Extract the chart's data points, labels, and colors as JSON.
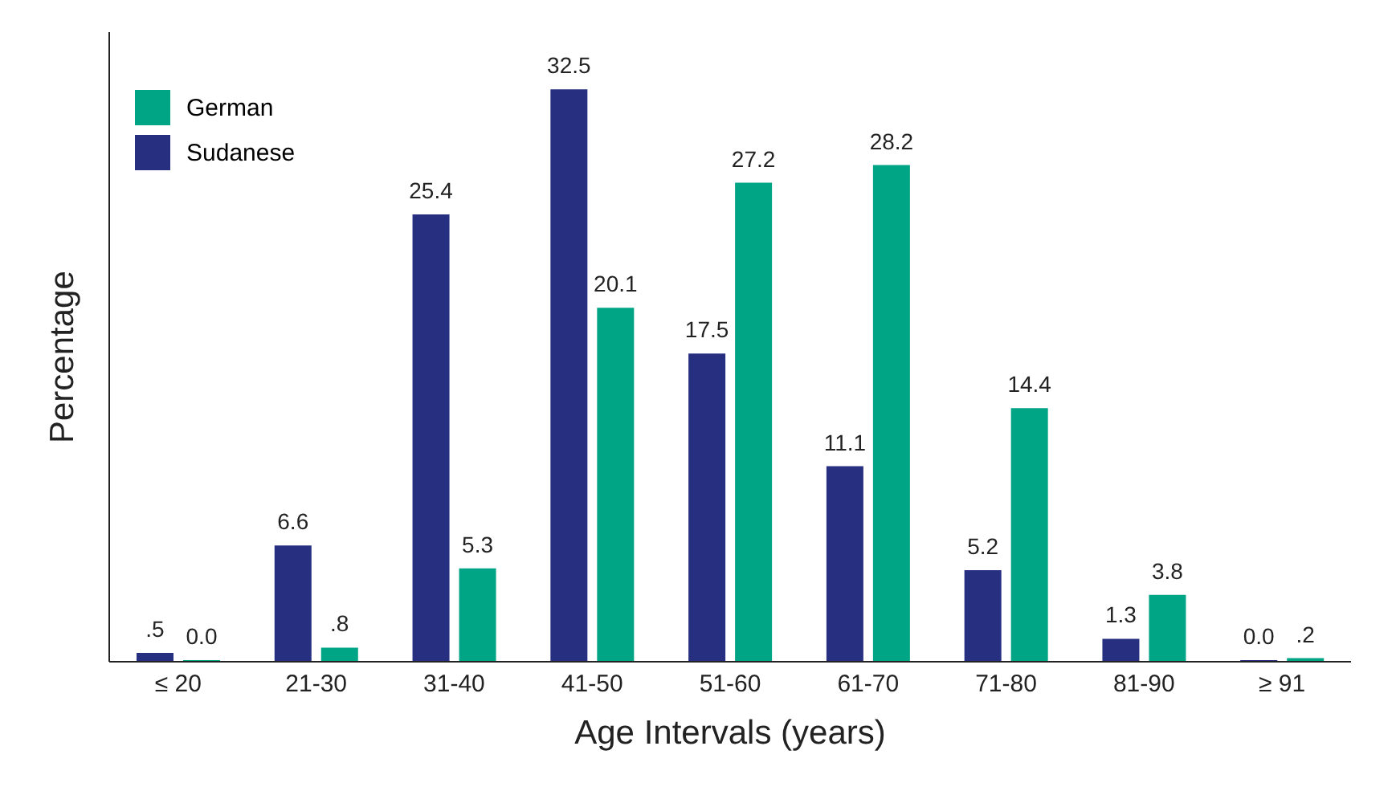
{
  "chart_data": {
    "type": "bar",
    "xlabel": "Age Intervals (years)",
    "ylabel": "Percentage",
    "categories": [
      "≤ 20",
      "21-30",
      "31-40",
      "41-50",
      "51-60",
      "61-70",
      "71-80",
      "81-90",
      "≥ 91"
    ],
    "series": [
      {
        "name": "Sudanese",
        "color": "#262f80",
        "values": [
          0.5,
          6.6,
          25.4,
          32.5,
          17.5,
          11.1,
          5.2,
          1.3,
          0.0
        ],
        "value_labels": [
          ".5",
          "6.6",
          "25.4",
          "32.5",
          "17.5",
          "11.1",
          "5.2",
          "1.3",
          "0.0"
        ]
      },
      {
        "name": "German",
        "color": "#00a585",
        "values": [
          0.0,
          0.8,
          5.3,
          20.1,
          27.2,
          28.2,
          14.4,
          3.8,
          0.2
        ],
        "value_labels": [
          "0.0",
          ".8",
          "5.3",
          "20.1",
          "27.2",
          "28.2",
          "14.4",
          "3.8",
          ".2"
        ]
      }
    ],
    "legend": "top left",
    "grid": false
  }
}
